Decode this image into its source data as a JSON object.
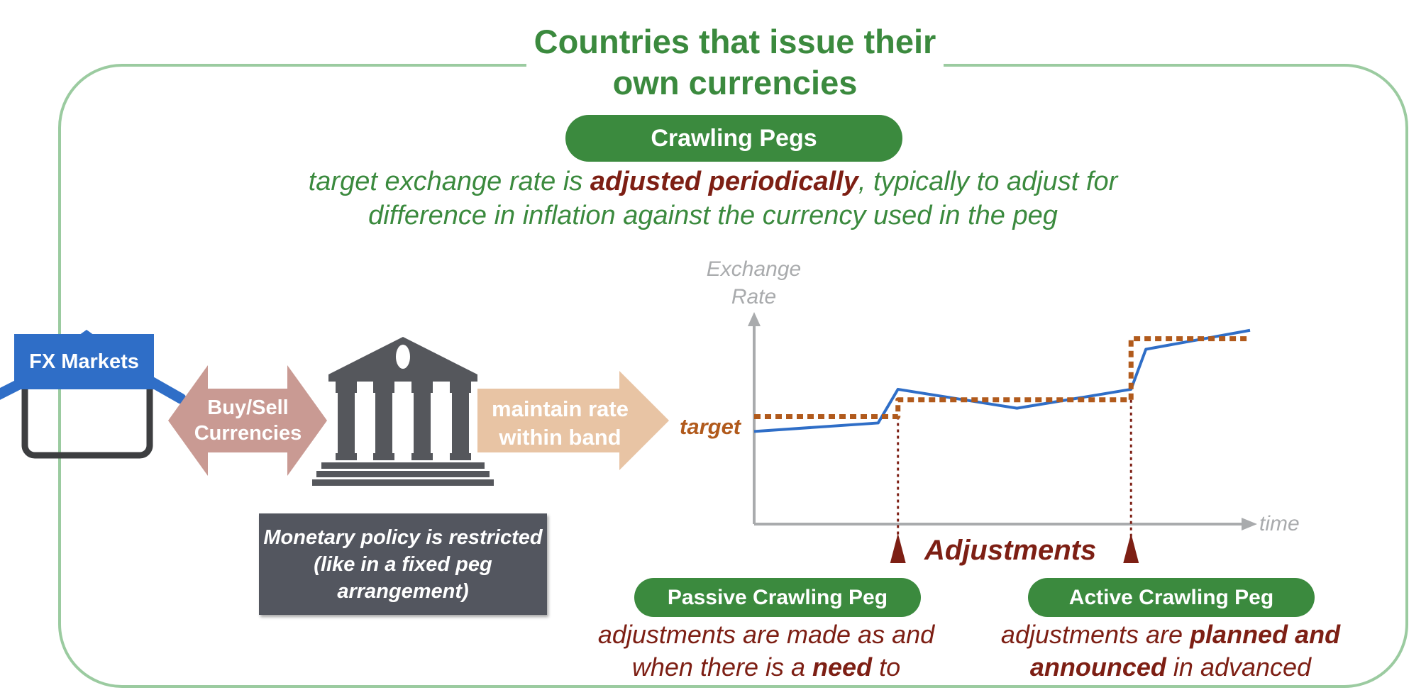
{
  "title": "Countries that issue their own currencies",
  "main_label": "Crawling Pegs",
  "description": {
    "pre": "target exchange rate is ",
    "emph": "adjusted periodically",
    "post": ", typically to adjust for difference in inflation against the currency used in the peg"
  },
  "fx_markets": "FX Markets",
  "buy_sell": "Buy/Sell Currencies",
  "maintain": "maintain rate within band",
  "monetary_policy": "Monetary policy is restricted (like in a fixed peg arrangement)",
  "chart_data": {
    "type": "line",
    "title": "",
    "ylabel": "Exchange Rate",
    "xlabel": "time",
    "xlim": [
      0,
      10
    ],
    "ylim": [
      0,
      10
    ],
    "grid": false,
    "target_label": "target",
    "annotation": "Adjustments",
    "adjustment_times": [
      2.9,
      7.6
    ],
    "series": [
      {
        "name": "exchange rate",
        "x": [
          0,
          2.5,
          2.9,
          5.3,
          7.6,
          7.9,
          10
        ],
        "y": [
          4.4,
          4.8,
          6.4,
          5.5,
          6.4,
          8.3,
          9.2
        ]
      },
      {
        "name": "target",
        "style": "dotted",
        "x": [
          0,
          2.9,
          2.9,
          7.6,
          7.6,
          10
        ],
        "y": [
          5.1,
          5.1,
          5.9,
          5.9,
          8.8,
          8.8
        ]
      }
    ]
  },
  "colors": {
    "green": "#3b8a3e",
    "frame": "#9bcba0",
    "dark_red": "#7d1f14",
    "target_orange": "#b15a1c",
    "line_blue": "#2f6ec7",
    "axis_gray": "#a9abad",
    "bank_gray": "#55575c",
    "buy_sell_arrow": "#c99a93",
    "maintain_arrow": "#e8c4a4"
  },
  "passive": {
    "label": "Passive Crawling Peg",
    "pre": "adjustments are made as and when there is a ",
    "emph": "need",
    "post": " to"
  },
  "active": {
    "label": "Active Crawling Peg",
    "pre": "adjustments are ",
    "emph": "planned and announced",
    "post": " in advanced"
  }
}
